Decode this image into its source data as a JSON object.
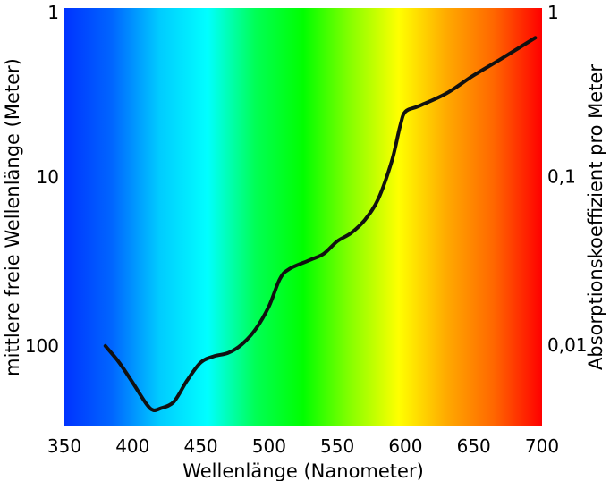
{
  "chart_data": {
    "type": "line",
    "xlabel": "Wellenlänge (Nanometer)",
    "ylabel_left": "mittlere freie Wellenlänge (Meter)",
    "ylabel_right": "Absorptionskoeffizient pro Meter",
    "xlim": [
      350,
      700
    ],
    "x_scale": "linear",
    "y_scale": "log",
    "ylim_left": [
      1,
      300
    ],
    "ylim_right": [
      1,
      0.0033
    ],
    "x_ticks": [
      "350",
      "400",
      "450",
      "500",
      "550",
      "600",
      "650",
      "700"
    ],
    "x_tick_values": [
      350,
      400,
      450,
      500,
      550,
      600,
      650,
      700
    ],
    "y_left_ticks": [
      "1",
      "10",
      "100"
    ],
    "y_left_tick_values": [
      1,
      10,
      100
    ],
    "y_right_ticks": [
      "1",
      "0,1",
      "0,01"
    ],
    "y_right_tick_values": [
      1,
      0.1,
      0.01
    ],
    "background": "visible spectrum gradient",
    "spectrum_colors": [
      "#0033ff",
      "#0066ff",
      "#00ccff",
      "#00ffff",
      "#00ff55",
      "#00ff00",
      "#88ff00",
      "#ffff00",
      "#ffaa00",
      "#ff6600",
      "#ff0000"
    ],
    "line_color": "#111111",
    "series": [
      {
        "x": [
          380,
          390,
          400,
          410,
          415,
          420,
          430,
          440,
          450,
          460,
          470,
          480,
          490,
          500,
          508,
          515,
          530,
          540,
          550,
          560,
          570,
          580,
          590,
          596,
          600,
          610,
          630,
          650,
          670,
          695
        ],
        "y": [
          100,
          125,
          165,
          220,
          240,
          235,
          215,
          160,
          125,
          115,
          110,
          98,
          80,
          58,
          40,
          35,
          31,
          28.5,
          24,
          21.5,
          18,
          13.5,
          8,
          5,
          4.1,
          3.8,
          3.2,
          2.5,
          2.0,
          1.5
        ]
      }
    ]
  }
}
